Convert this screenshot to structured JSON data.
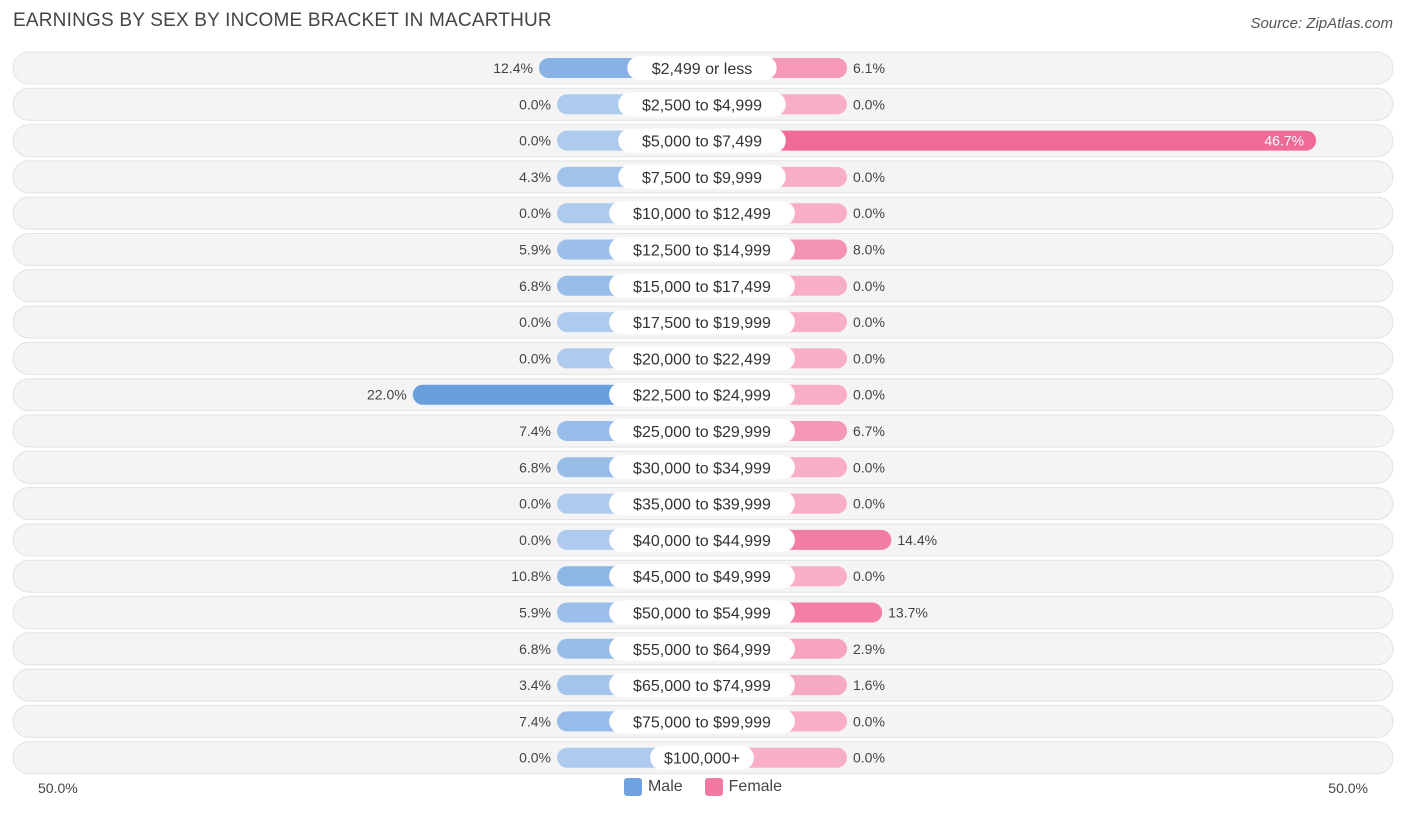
{
  "title": "EARNINGS BY SEX BY INCOME BRACKET IN MACARTHUR",
  "source": "Source: ZipAtlas.com",
  "axis": {
    "left_label": "50.0%",
    "right_label": "50.0%"
  },
  "legend": {
    "male": {
      "label": "Male",
      "color": "#6fa3e0"
    },
    "female": {
      "label": "Female",
      "color": "#f27aa0"
    }
  },
  "chart_data": {
    "type": "bar",
    "orientation": "diverging-horizontal",
    "title": "EARNINGS BY SEX BY INCOME BRACKET IN MACARTHUR",
    "xlim": [
      -50,
      50
    ],
    "categories": [
      "$2,499 or less",
      "$2,500 to $4,999",
      "$5,000 to $7,499",
      "$7,500 to $9,999",
      "$10,000 to $12,499",
      "$12,500 to $14,999",
      "$15,000 to $17,499",
      "$17,500 to $19,999",
      "$20,000 to $22,499",
      "$22,500 to $24,999",
      "$25,000 to $29,999",
      "$30,000 to $34,999",
      "$35,000 to $39,999",
      "$40,000 to $44,999",
      "$45,000 to $49,999",
      "$50,000 to $54,999",
      "$55,000 to $64,999",
      "$65,000 to $74,999",
      "$75,000 to $99,999",
      "$100,000+"
    ],
    "series": [
      {
        "name": "Male",
        "values": [
          12.4,
          0.0,
          0.0,
          4.3,
          0.0,
          5.9,
          6.8,
          0.0,
          0.0,
          22.0,
          7.4,
          6.8,
          0.0,
          0.0,
          10.8,
          5.9,
          6.8,
          3.4,
          7.4,
          0.0
        ],
        "labels": [
          "12.4%",
          "0.0%",
          "0.0%",
          "4.3%",
          "0.0%",
          "5.9%",
          "6.8%",
          "0.0%",
          "0.0%",
          "22.0%",
          "7.4%",
          "6.8%",
          "0.0%",
          "0.0%",
          "10.8%",
          "5.9%",
          "6.8%",
          "3.4%",
          "7.4%",
          "0.0%"
        ]
      },
      {
        "name": "Female",
        "values": [
          6.1,
          0.0,
          46.7,
          0.0,
          0.0,
          8.0,
          0.0,
          0.0,
          0.0,
          0.0,
          6.7,
          0.0,
          0.0,
          14.4,
          0.0,
          13.7,
          2.9,
          1.6,
          0.0,
          0.0
        ],
        "labels": [
          "6.1%",
          "0.0%",
          "46.7%",
          "0.0%",
          "0.0%",
          "8.0%",
          "0.0%",
          "0.0%",
          "0.0%",
          "0.0%",
          "6.7%",
          "0.0%",
          "0.0%",
          "14.4%",
          "0.0%",
          "13.7%",
          "2.9%",
          "1.6%",
          "0.0%",
          "0.0%"
        ]
      }
    ]
  }
}
